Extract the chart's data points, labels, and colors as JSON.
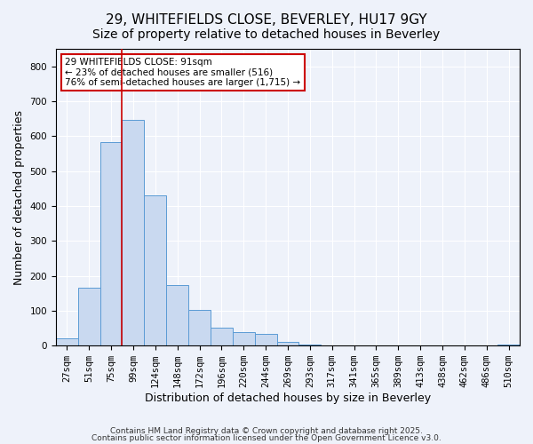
{
  "title": "29, WHITEFIELDS CLOSE, BEVERLEY, HU17 9GY",
  "subtitle": "Size of property relative to detached houses in Beverley",
  "xlabel": "Distribution of detached houses by size in Beverley",
  "ylabel": "Number of detached properties",
  "bar_labels": [
    "27sqm",
    "51sqm",
    "75sqm",
    "99sqm",
    "124sqm",
    "148sqm",
    "172sqm",
    "196sqm",
    "220sqm",
    "244sqm",
    "269sqm",
    "293sqm",
    "317sqm",
    "341sqm",
    "365sqm",
    "389sqm",
    "413sqm",
    "438sqm",
    "462sqm",
    "486sqm",
    "510sqm"
  ],
  "bar_values": [
    20,
    167,
    583,
    647,
    430,
    173,
    103,
    51,
    39,
    33,
    11,
    3,
    1,
    1,
    0,
    0,
    0,
    0,
    0,
    0,
    2
  ],
  "bar_color": "#c9d9f0",
  "bar_edge_color": "#5b9bd5",
  "vline_x_idx": 3,
  "vline_color": "#cc0000",
  "annotation_text": "29 WHITEFIELDS CLOSE: 91sqm\n← 23% of detached houses are smaller (516)\n76% of semi-detached houses are larger (1,715) →",
  "annotation_box_color": "#ffffff",
  "annotation_box_edge": "#cc0000",
  "ylim": [
    0,
    850
  ],
  "yticks": [
    0,
    100,
    200,
    300,
    400,
    500,
    600,
    700,
    800
  ],
  "footer1": "Contains HM Land Registry data © Crown copyright and database right 2025.",
  "footer2": "Contains public sector information licensed under the Open Government Licence v3.0.",
  "bg_color": "#eef2fa",
  "title_fontsize": 11,
  "subtitle_fontsize": 10,
  "tick_fontsize": 7.5,
  "label_fontsize": 9,
  "footer_fontsize": 6.5
}
